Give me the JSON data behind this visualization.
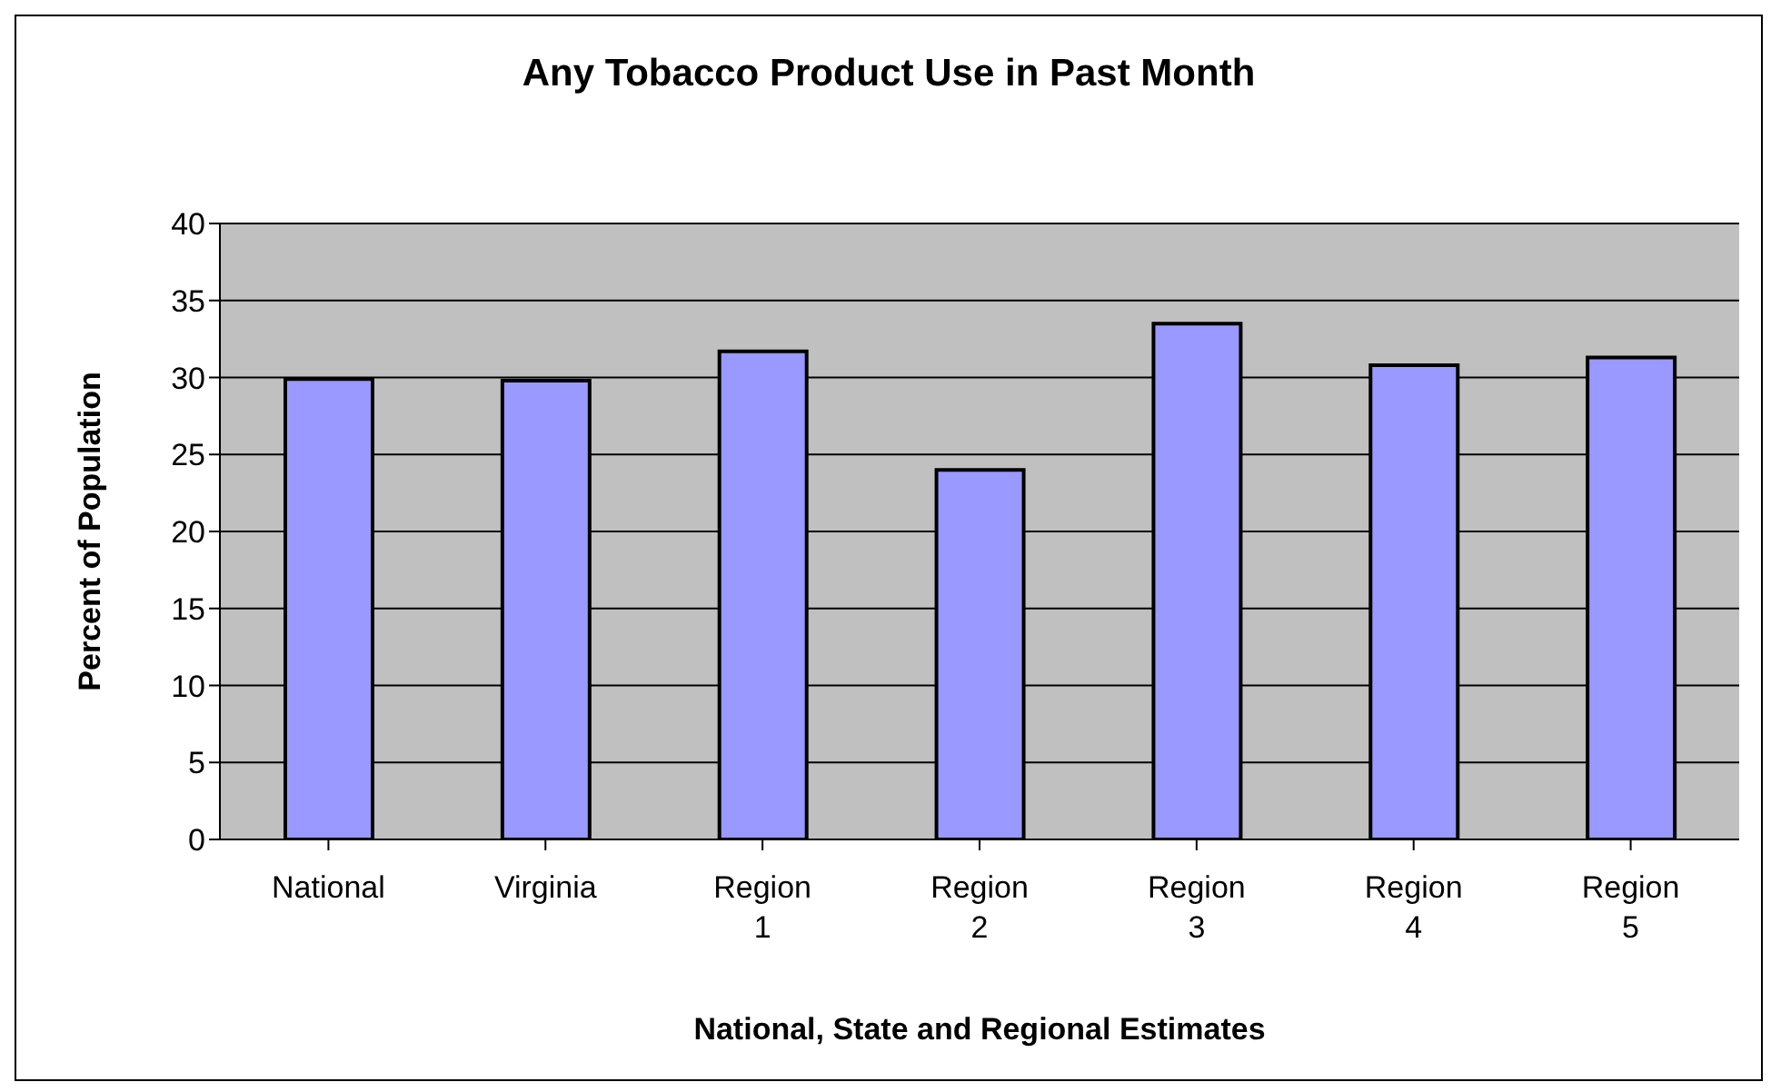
{
  "chart_data": {
    "type": "bar",
    "title": "Any Tobacco Product Use in Past Month",
    "xlabel": "National, State and Regional Estimates",
    "ylabel": "Percent of Population",
    "categories": [
      "National",
      "Virginia",
      "Region 1",
      "Region 2",
      "Region 3",
      "Region 4",
      "Region 5"
    ],
    "values": [
      29.9,
      29.8,
      31.7,
      24.0,
      33.5,
      30.8,
      31.3
    ],
    "color": "#9999ff",
    "ylim": [
      0,
      40
    ],
    "yticks": [
      0,
      5,
      10,
      15,
      20,
      25,
      30,
      35,
      40
    ],
    "grid": "y"
  }
}
